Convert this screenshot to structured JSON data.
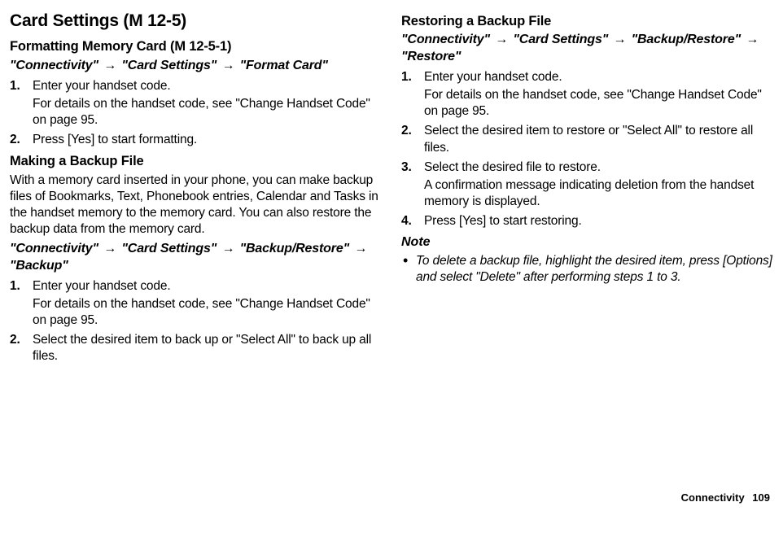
{
  "left": {
    "main_heading": "Card Settings",
    "main_menu": "(M 12-5)",
    "sect1_heading": "Formatting Memory Card",
    "sect1_menu": "(M 12-5-1)",
    "sect1_path_parts": [
      "\"Connectivity\"",
      "\"Card Settings\"",
      "\"Format Card\""
    ],
    "sect1_steps": [
      {
        "main": "Enter your handset code.",
        "sub": "For details on the handset code, see \"Change Handset Code\" on page 95."
      },
      {
        "main": "Press [Yes] to start formatting."
      }
    ],
    "sect2_heading": "Making a Backup File",
    "sect2_intro": "With a memory card inserted in your phone, you can make backup files of Bookmarks, Text, Phonebook entries, Calendar and Tasks in the handset memory to the memory card. You can also restore the backup data from the memory card.",
    "sect2_path_parts": [
      "\"Connectivity\"",
      "\"Card Settings\"",
      "\"Backup/Restore\"",
      "\"Backup\""
    ],
    "sect2_steps": [
      {
        "main": "Enter your handset code.",
        "sub": "For details on the handset code, see \"Change Handset Code\" on page 95."
      },
      {
        "main": "Select the desired item to back up or \"Select All\" to back up all files."
      }
    ]
  },
  "right": {
    "sect1_heading": "Restoring a Backup File",
    "sect1_path_parts": [
      "\"Connectivity\"",
      "\"Card Settings\"",
      "\"Backup/Restore\"",
      "\"Restore\""
    ],
    "sect1_steps": [
      {
        "main": "Enter your handset code.",
        "sub": "For details on the handset code, see \"Change Handset Code\" on page 95."
      },
      {
        "main": "Select the desired item to restore or \"Select All\" to restore all files."
      },
      {
        "main": "Select the desired file to restore.",
        "sub": "A confirmation message indicating deletion from the handset memory is displayed."
      },
      {
        "main": "Press [Yes] to start restoring."
      }
    ],
    "note_label": "Note",
    "note_items": [
      "To delete a backup file, highlight the desired item, press [Options] and select \"Delete\" after performing steps 1 to 3."
    ]
  },
  "footer": {
    "section": "Connectivity",
    "page": "109"
  }
}
